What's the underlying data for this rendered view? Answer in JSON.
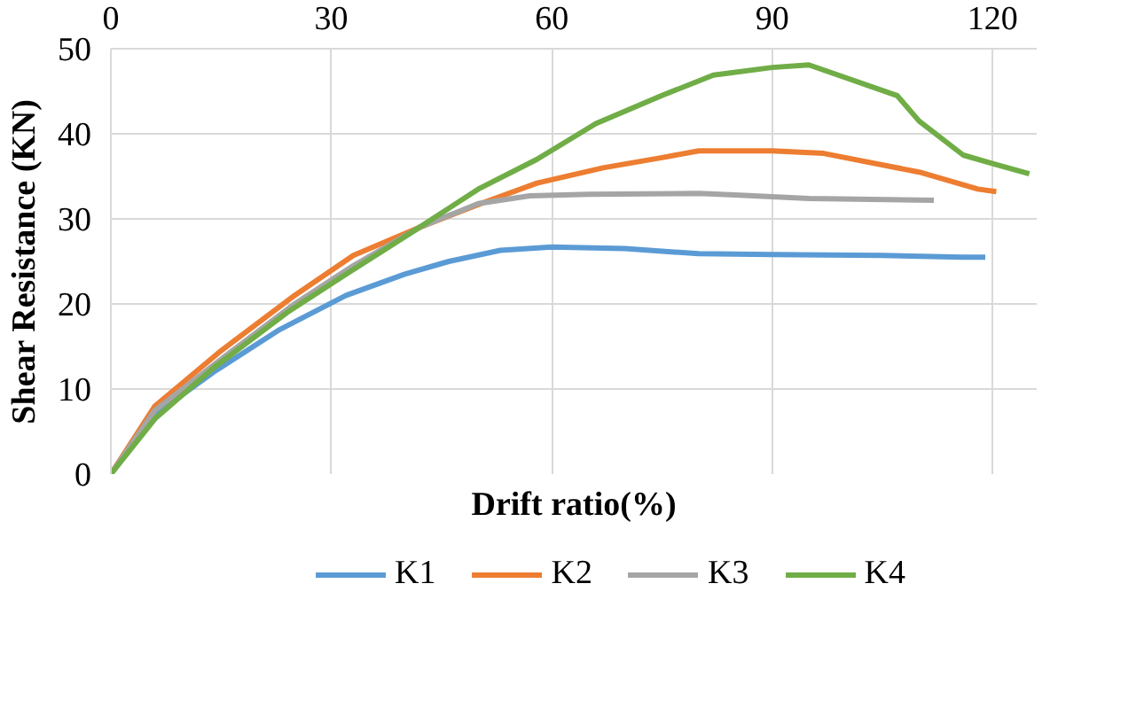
{
  "chart_data": {
    "type": "line",
    "xlabel": "Drift ratio(%)",
    "ylabel": "Shear Resistance (KN)",
    "xlim": [
      0,
      126
    ],
    "xticks": [
      0,
      30,
      60,
      90,
      120
    ],
    "ylim": [
      0,
      50
    ],
    "yticks": [
      0,
      10,
      20,
      30,
      40,
      50
    ],
    "grid": true,
    "legend": "bottom",
    "marker": "none",
    "line_style": "solid",
    "series": [
      {
        "name": "K1",
        "color": "#5b9bd5",
        "x": [
          0,
          6,
          14,
          23,
          32,
          40,
          46,
          53,
          60,
          70,
          80,
          90,
          105,
          116,
          119
        ],
        "values": [
          0,
          7,
          12,
          17,
          21,
          23.5,
          25,
          26.3,
          26.7,
          26.5,
          25.9,
          25.8,
          25.7,
          25.5,
          25.5
        ]
      },
      {
        "name": "K2",
        "color": "#ed7d31",
        "x": [
          0,
          6,
          15,
          25,
          33,
          42,
          51,
          58,
          67,
          75,
          80,
          90,
          97,
          110,
          118,
          120.5
        ],
        "values": [
          0,
          8,
          14.5,
          21,
          25.7,
          29,
          32,
          34.2,
          36,
          37.2,
          38,
          38,
          37.7,
          35.5,
          33.5,
          33.2
        ]
      },
      {
        "name": "K3",
        "color": "#a5a5a5",
        "x": [
          0,
          6,
          15,
          25,
          33,
          42,
          50,
          57,
          65,
          80,
          85,
          95,
          112
        ],
        "values": [
          0,
          7.5,
          13.5,
          20,
          24.5,
          29,
          31.8,
          32.7,
          32.9,
          33,
          32.8,
          32.4,
          32.2
        ]
      },
      {
        "name": "K4",
        "color": "#70ad47",
        "x": [
          0,
          6,
          14,
          24,
          32,
          42,
          50,
          58,
          66,
          75,
          82,
          90,
          95,
          107,
          110,
          116,
          120,
          125
        ],
        "values": [
          0,
          6.5,
          12.5,
          19,
          23.5,
          29,
          33.5,
          37,
          41.2,
          44.5,
          46.9,
          47.8,
          48.1,
          44.5,
          41.5,
          37.5,
          36.5,
          35.3
        ]
      }
    ]
  }
}
